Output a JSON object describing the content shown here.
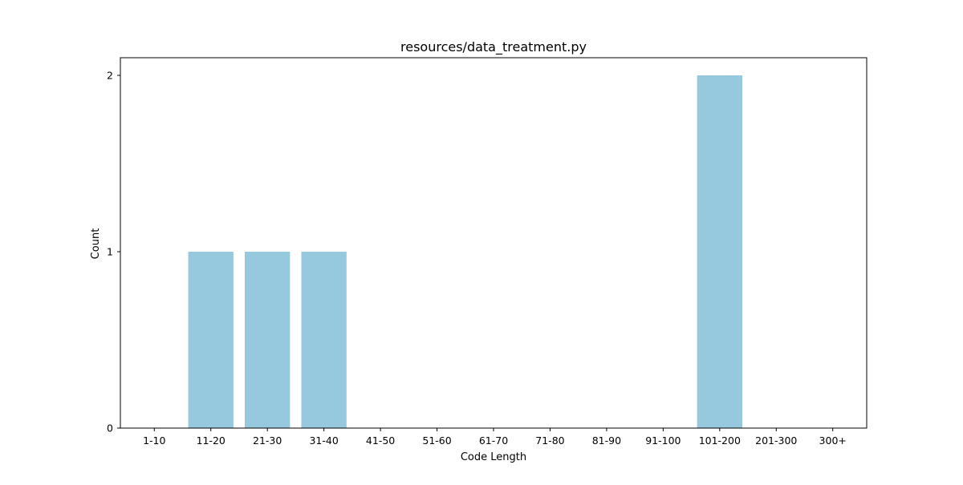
{
  "chart_data": {
    "type": "bar",
    "title": "resources/data_treatment.py",
    "xlabel": "Code Length",
    "ylabel": "Count",
    "categories": [
      "1-10",
      "11-20",
      "21-30",
      "31-40",
      "41-50",
      "51-60",
      "61-70",
      "71-80",
      "81-90",
      "91-100",
      "101-200",
      "201-300",
      "300+"
    ],
    "values": [
      0,
      1,
      1,
      1,
      0,
      0,
      0,
      0,
      0,
      0,
      2,
      0,
      0
    ],
    "ylim": [
      0,
      2.1
    ],
    "yticks": [
      "0",
      "1",
      "2"
    ],
    "grid": false,
    "bar_color": "#96c9dd",
    "axis_color": "#000000"
  }
}
